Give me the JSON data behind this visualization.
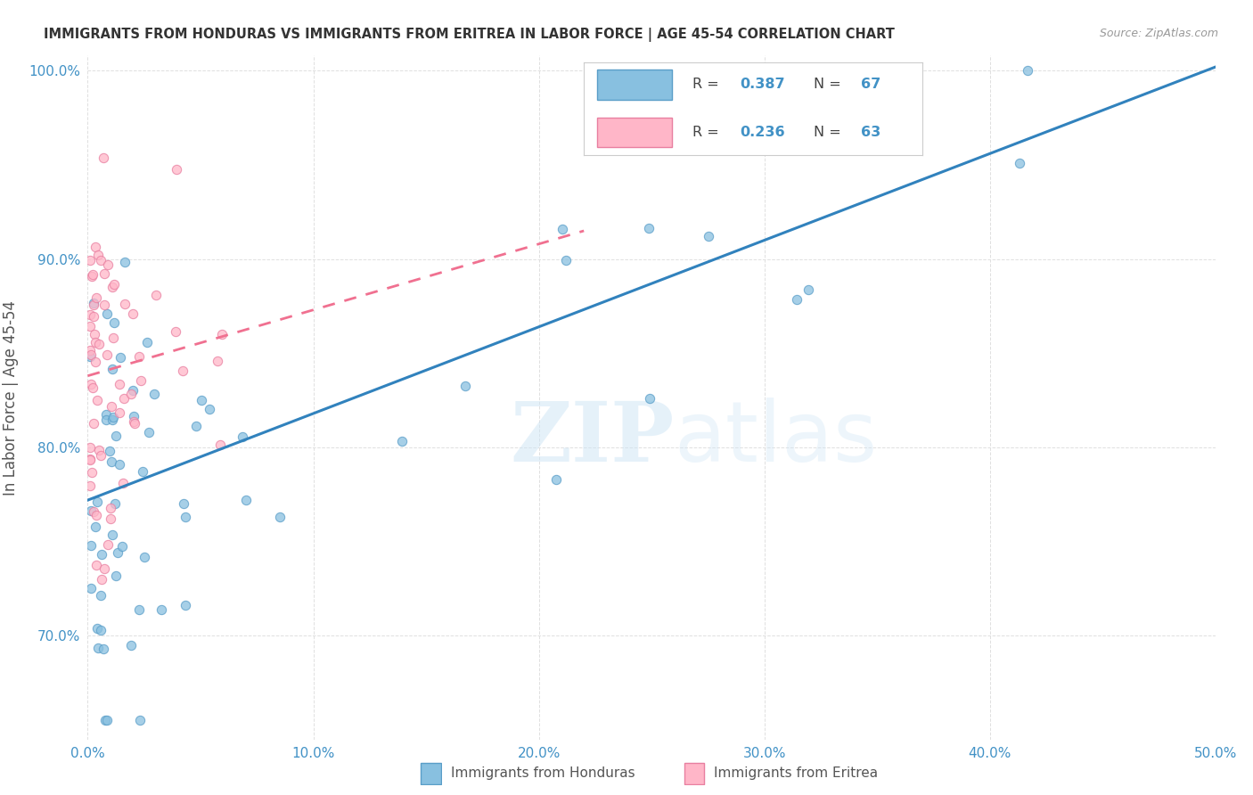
{
  "title": "IMMIGRANTS FROM HONDURAS VS IMMIGRANTS FROM ERITREA IN LABOR FORCE | AGE 45-54 CORRELATION CHART",
  "source": "Source: ZipAtlas.com",
  "ylabel": "In Labor Force | Age 45-54",
  "xlim": [
    0.0,
    0.5
  ],
  "ylim": [
    0.645,
    1.008
  ],
  "x_ticks": [
    0.0,
    0.1,
    0.2,
    0.3,
    0.4,
    0.5
  ],
  "y_ticks": [
    0.7,
    0.8,
    0.9,
    1.0
  ],
  "x_tick_labels": [
    "0.0%",
    "10.0%",
    "20.0%",
    "30.0%",
    "40.0%",
    "50.0%"
  ],
  "y_tick_labels": [
    "70.0%",
    "80.0%",
    "90.0%",
    "100.0%"
  ],
  "honduras_color": "#88c0e0",
  "eritrea_color": "#ffb6c8",
  "honduras_edge_color": "#5a9ec8",
  "eritrea_edge_color": "#e87fa0",
  "honduras_line_color": "#3182bd",
  "eritrea_line_color": "#f07090",
  "R_honduras": 0.387,
  "N_honduras": 67,
  "R_eritrea": 0.236,
  "N_eritrea": 63,
  "legend_text_color": "#4292c6",
  "background_color": "#ffffff",
  "grid_color": "#e0e0e0",
  "watermark_zip": "ZIP",
  "watermark_atlas": "atlas",
  "title_color": "#333333",
  "source_color": "#999999",
  "ylabel_color": "#555555",
  "tick_color": "#4292c6",
  "legend_border_color": "#cccccc",
  "bottom_legend_color": "#555555",
  "honduras_line_intercept": 0.772,
  "honduras_line_slope": 0.46,
  "eritrea_line_intercept": 0.838,
  "eritrea_line_slope": 0.35,
  "eritrea_line_xmax": 0.22
}
